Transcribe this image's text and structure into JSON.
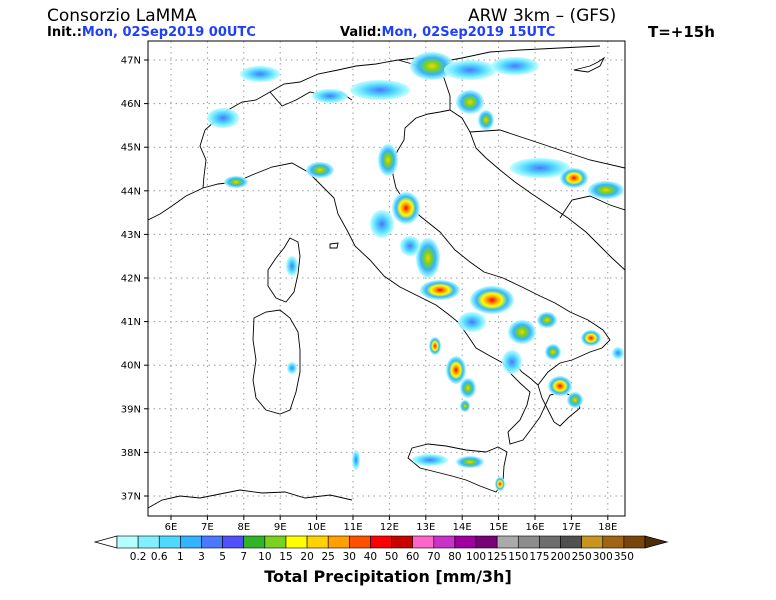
{
  "header": {
    "org": "Consorzio LaMMA",
    "model": "ARW 3km – (GFS)",
    "init_label": "Init.:",
    "init_value": "Mon, 02Sep2019 00UTC",
    "valid_label": "Valid:",
    "valid_value": "Mon, 02Sep2019 15UTC",
    "lead": "T=+15h"
  },
  "map": {
    "lat_labels": [
      "47N",
      "46N",
      "45N",
      "44N",
      "43N",
      "42N",
      "41N",
      "40N",
      "39N",
      "38N",
      "37N"
    ],
    "lon_labels": [
      "6E",
      "7E",
      "8E",
      "9E",
      "10E",
      "11E",
      "12E",
      "13E",
      "14E",
      "15E",
      "16E",
      "17E",
      "18E"
    ]
  },
  "colorbar": {
    "title": "Total Precipitation [mm/3h]",
    "labels": [
      "0.2",
      "0.6",
      "1",
      "3",
      "5",
      "7",
      "10",
      "15",
      "20",
      "25",
      "30",
      "40",
      "50",
      "60",
      "70",
      "80",
      "100",
      "125",
      "150",
      "175",
      "200",
      "250",
      "300",
      "350"
    ],
    "colors": [
      "#b4ffff",
      "#80f0ff",
      "#50d8ff",
      "#32b4ff",
      "#4a78ff",
      "#5050ff",
      "#32b428",
      "#78d21e",
      "#ffff00",
      "#ffd200",
      "#ffa000",
      "#ff5000",
      "#ff0000",
      "#c80000",
      "#ff64c8",
      "#c832c8",
      "#a000a0",
      "#780078",
      "#aaaaaa",
      "#8c8c8c",
      "#6e6e6e",
      "#505050",
      "#c8961e",
      "#a06414",
      "#78460a"
    ]
  }
}
